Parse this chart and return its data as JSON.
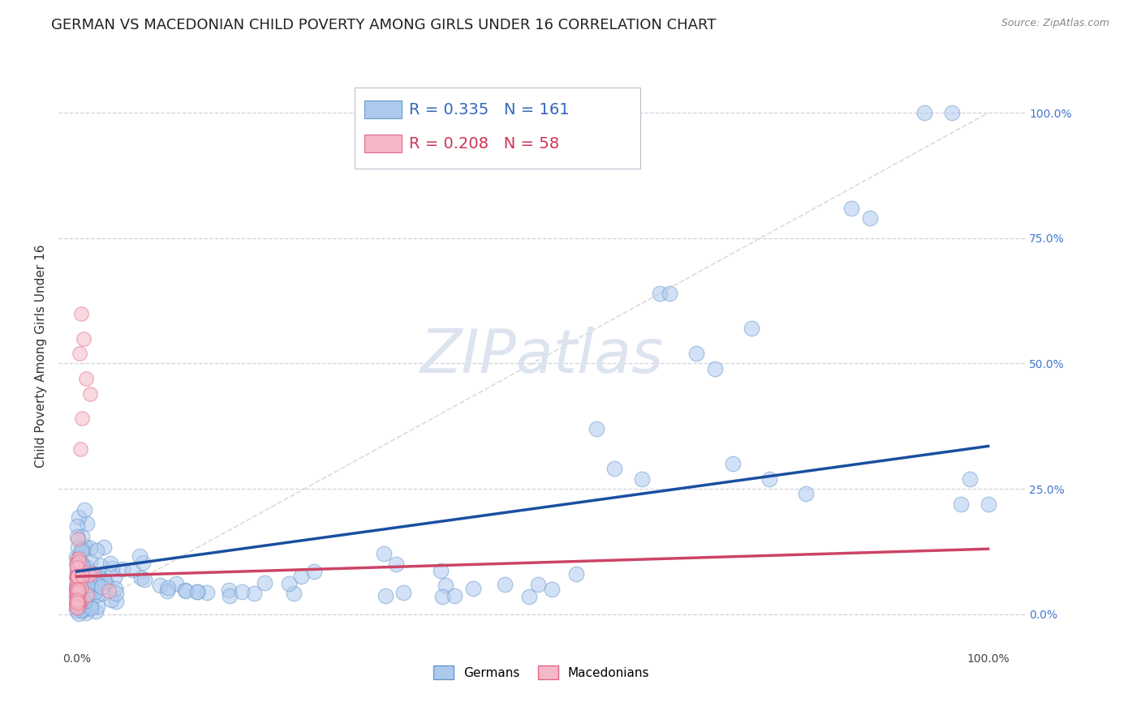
{
  "title": "GERMAN VS MACEDONIAN CHILD POVERTY AMONG GIRLS UNDER 16 CORRELATION CHART",
  "source": "Source: ZipAtlas.com",
  "ylabel": "Child Poverty Among Girls Under 16",
  "ytick_labels": [
    "0.0%",
    "25.0%",
    "50.0%",
    "75.0%",
    "100.0%"
  ],
  "ytick_values": [
    0.0,
    0.25,
    0.5,
    0.75,
    1.0
  ],
  "legend_labels": [
    "Germans",
    "Macedonians"
  ],
  "german_color": "#adc9ee",
  "german_edge_color": "#6699cc",
  "macedonian_color": "#f5b8c8",
  "macedonian_edge_color": "#e06888",
  "regression_line_color": "#1a4fa0",
  "regression_mac_color": "#cc4466",
  "diagonal_color": "#c8c8c8",
  "background_color": "#ffffff",
  "grid_color": "#ccccdd",
  "watermark_color": "#dde4f0",
  "title_fontsize": 13,
  "axis_label_fontsize": 11,
  "tick_fontsize": 10,
  "source_fontsize": 9,
  "legend_fontsize": 13,
  "german_R": 0.335,
  "german_N": 161,
  "macedonian_R": 0.208,
  "macedonian_N": 58,
  "xlim": [
    -0.02,
    1.04
  ],
  "ylim": [
    -0.07,
    1.1
  ],
  "scatter_size_german": 180,
  "scatter_size_mac": 160,
  "scatter_alpha": 0.55,
  "regression_lw": 2.5,
  "diagonal_lw": 1.2,
  "german_regression_start_y": 0.085,
  "german_regression_end_y": 0.335,
  "mac_regression_start_y": 0.075,
  "mac_regression_end_y": 0.13
}
